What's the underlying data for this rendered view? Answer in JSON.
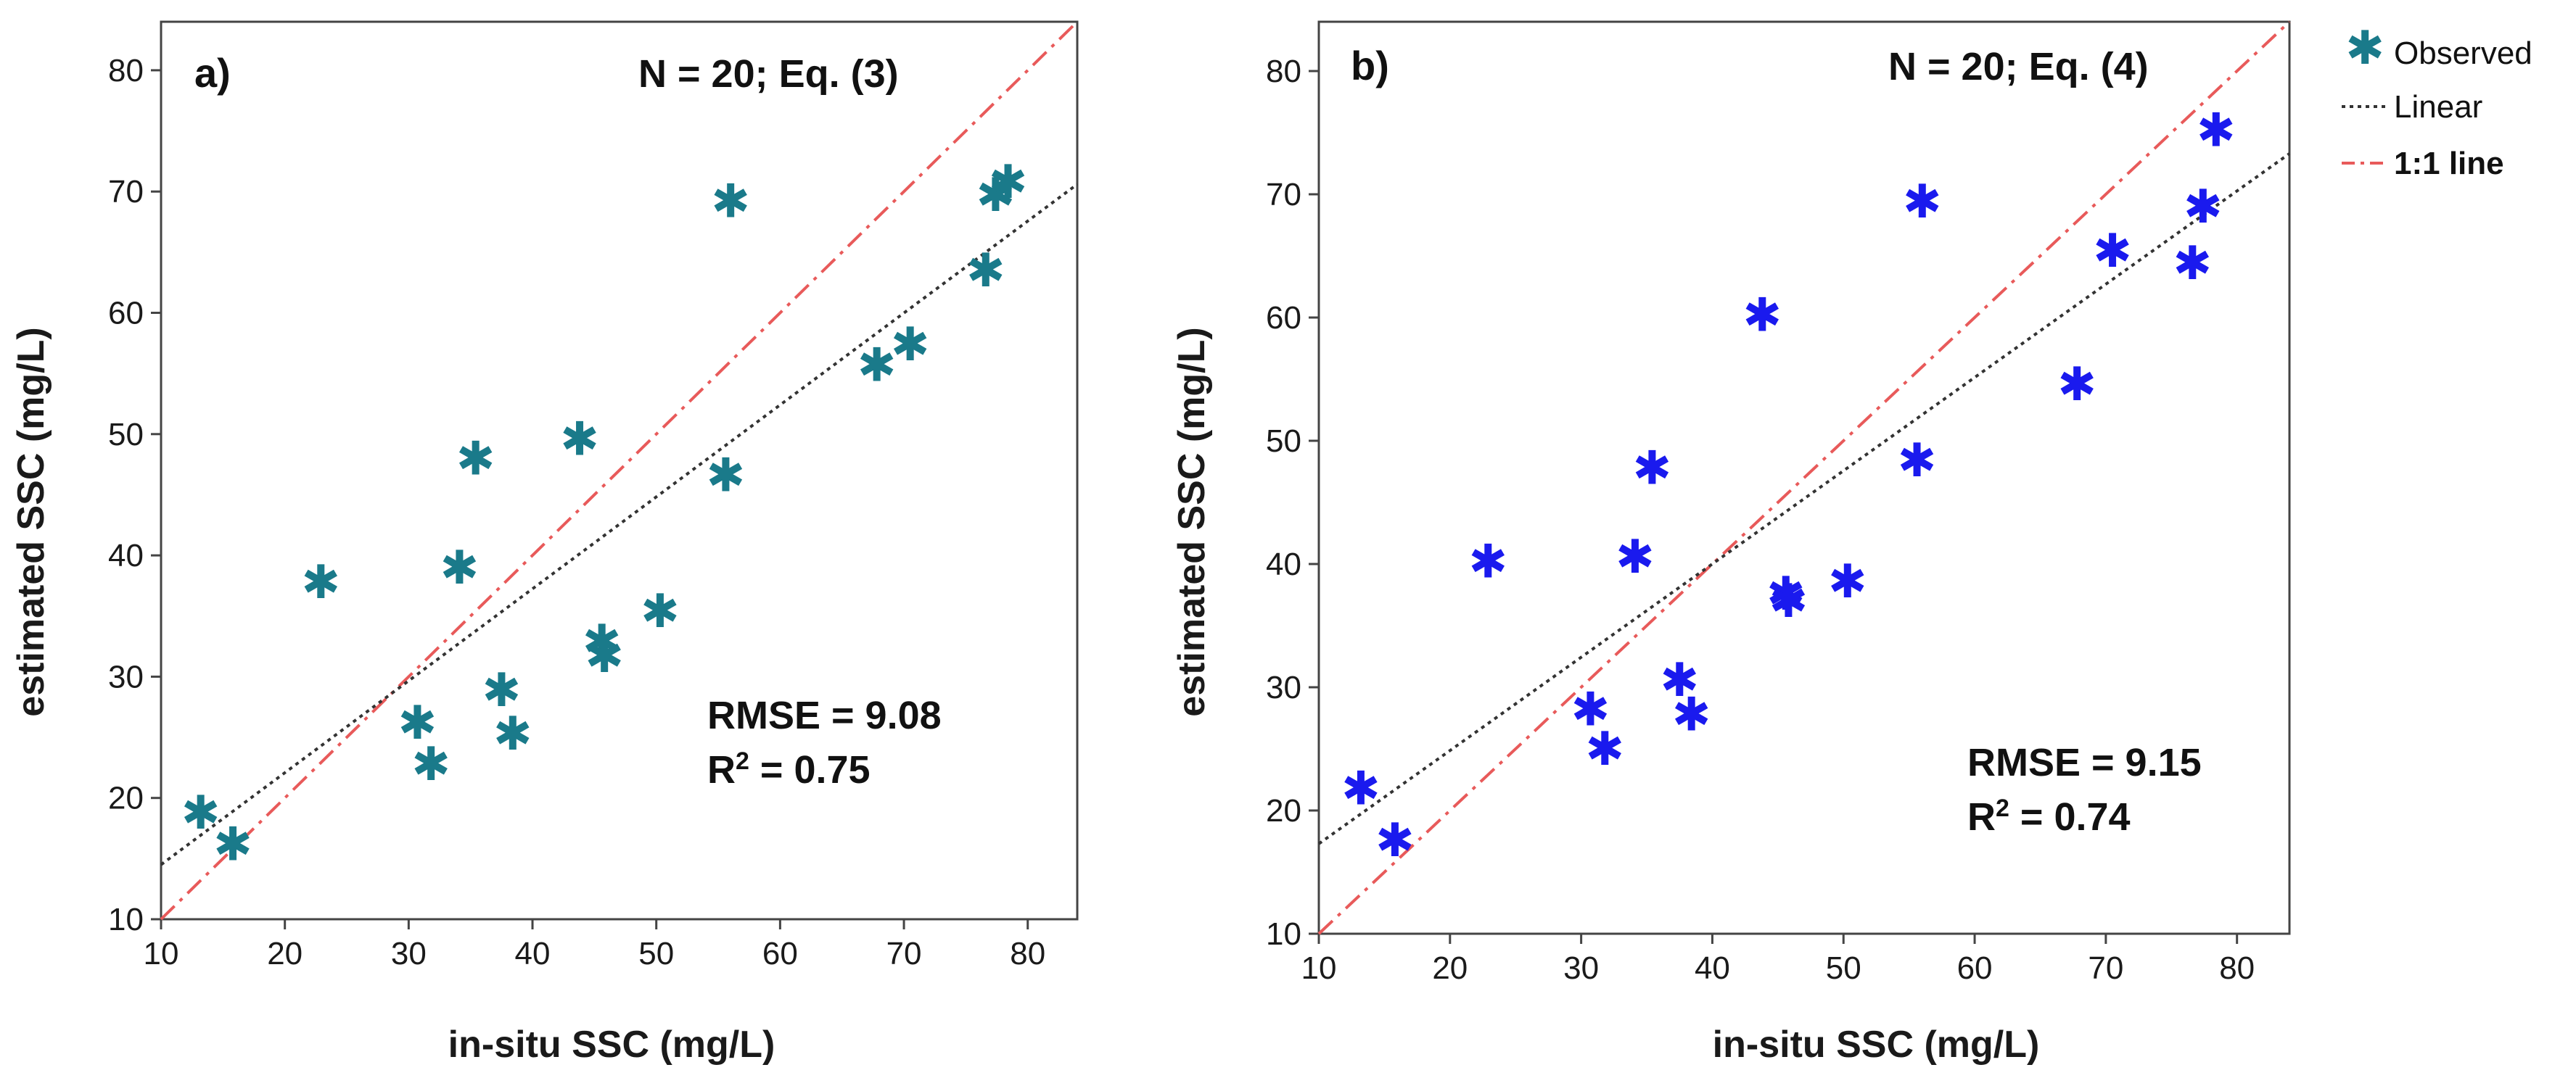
{
  "chart_data": [
    {
      "type": "scatter",
      "panel_label": "a)",
      "annotation_top": "N = 20; Eq. (3)",
      "rmse_label": "RMSE = 9.08",
      "r2_base": "R",
      "r2_sup": "2",
      "r2_rest": " = 0.75",
      "xlabel": "in-situ SSC (mg/L)",
      "ylabel": "estimated SSC (mg/L)",
      "xlim": [
        10,
        84
      ],
      "ylim": [
        10,
        84
      ],
      "x_ticks": [
        "10",
        "20",
        "30",
        "40",
        "50",
        "60",
        "70",
        "80"
      ],
      "y_ticks": [
        "10",
        "20",
        "30",
        "40",
        "50",
        "60",
        "70",
        "80"
      ],
      "marker_color": "#1a7a8a",
      "series": [
        {
          "name": "Observed",
          "x": [
            13.2,
            15.8,
            22.9,
            30.7,
            31.8,
            34.1,
            35.4,
            37.5,
            38.4,
            43.8,
            45.6,
            45.8,
            50.3,
            55.6,
            56.0,
            67.8,
            70.5,
            76.6,
            77.4,
            78.4
          ],
          "y": [
            18.8,
            16.2,
            37.8,
            26.2,
            22.8,
            39.0,
            48.0,
            28.9,
            25.3,
            49.6,
            32.9,
            31.7,
            35.4,
            46.6,
            69.2,
            55.7,
            57.4,
            63.5,
            69.7,
            70.8
          ]
        },
        {
          "name": "Linear",
          "x": [
            10,
            84
          ],
          "y": [
            14.5,
            70.6
          ]
        },
        {
          "name": "1:1 line",
          "x": [
            10,
            84
          ],
          "y": [
            10,
            84
          ]
        }
      ]
    },
    {
      "type": "scatter",
      "panel_label": "b)",
      "annotation_top": "N = 20; Eq. (4)",
      "rmse_label": "RMSE =  9.15",
      "r2_base": "R",
      "r2_sup": "2",
      "r2_rest": " =  0.74",
      "xlabel": "in-situ SSC (mg/L)",
      "ylabel": "estimated SSC (mg/L)",
      "xlim": [
        10,
        84
      ],
      "ylim": [
        10,
        84
      ],
      "x_ticks": [
        "10",
        "20",
        "30",
        "40",
        "50",
        "60",
        "70",
        "80"
      ],
      "y_ticks": [
        "10",
        "20",
        "30",
        "40",
        "50",
        "60",
        "70",
        "80"
      ],
      "marker_color": "#1a1aee",
      "series": [
        {
          "name": "Observed",
          "x": [
            13.2,
            15.8,
            22.9,
            30.7,
            31.8,
            34.1,
            35.4,
            37.5,
            38.4,
            43.8,
            45.6,
            45.8,
            50.3,
            55.6,
            56.0,
            67.8,
            70.5,
            76.6,
            77.4,
            78.4
          ],
          "y": [
            21.8,
            17.6,
            40.2,
            28.2,
            25.0,
            40.6,
            47.8,
            30.6,
            27.8,
            60.2,
            37.6,
            37.0,
            38.6,
            48.4,
            69.4,
            54.6,
            65.4,
            64.4,
            69.0,
            75.2
          ]
        },
        {
          "name": "Linear",
          "x": [
            10,
            84
          ],
          "y": [
            17.3,
            73.3
          ]
        },
        {
          "name": "1:1 line",
          "x": [
            10,
            84
          ],
          "y": [
            10,
            84
          ]
        }
      ]
    }
  ],
  "legend": {
    "items": [
      {
        "label": "Observed",
        "style": "star",
        "color": "#1a7a8a"
      },
      {
        "label": "Linear",
        "style": "dotted",
        "color": "#333333"
      },
      {
        "label": "1:1 line",
        "style": "dashdot",
        "color": "#e85a5a"
      }
    ]
  },
  "colors": {
    "linear_line": "#333333",
    "one_to_one_line": "#e85a5a",
    "axes": "#444444"
  }
}
